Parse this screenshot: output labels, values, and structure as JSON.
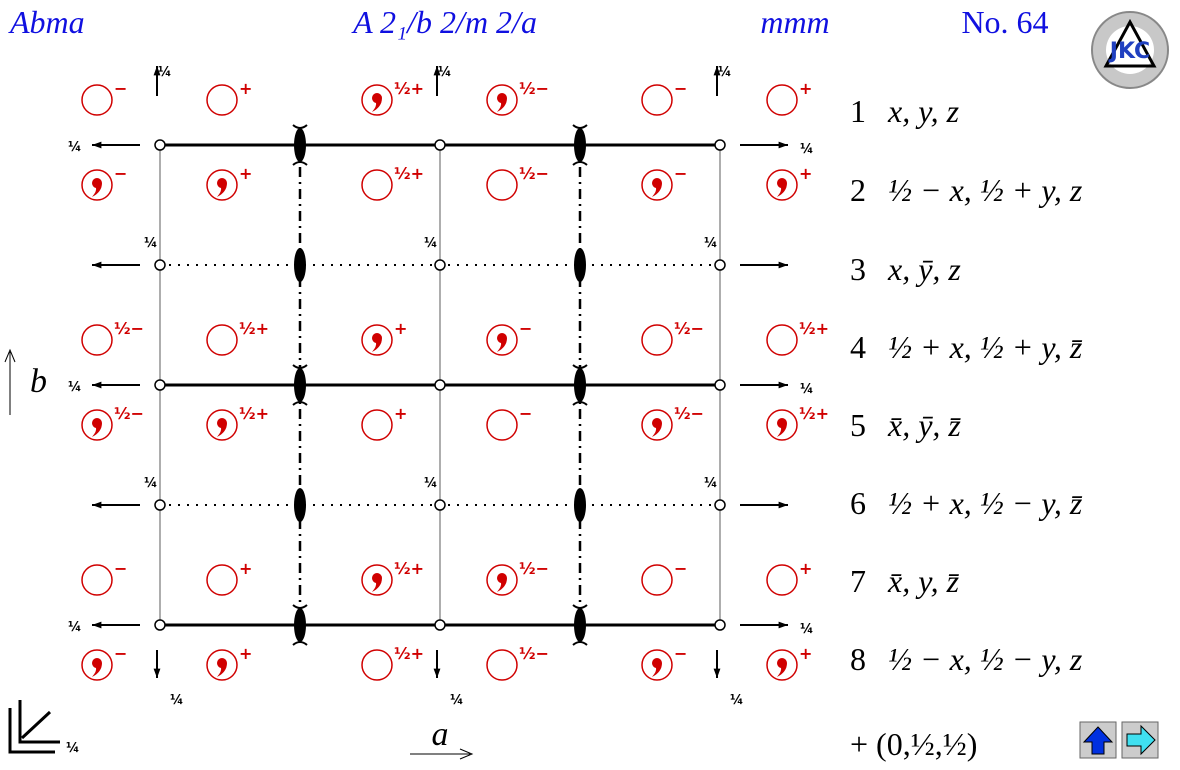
{
  "header": {
    "symbol": "Abma",
    "full_symbol": "A 2₁/b 2/m 2/a",
    "point_group": "mmm",
    "number": "No. 64"
  },
  "logo": "JKC",
  "axes": {
    "a": "a",
    "b": "b"
  },
  "quarter": "¼",
  "symbols": [
    [
      {
        "sign": "−",
        "comma": false
      },
      {
        "sign": "+",
        "comma": false
      },
      {
        "sign": "½+",
        "comma": true
      },
      {
        "sign": "½−",
        "comma": true
      },
      {
        "sign": "−",
        "comma": false
      },
      {
        "sign": "+",
        "comma": false
      }
    ],
    [
      {
        "sign": "−",
        "comma": true
      },
      {
        "sign": "+",
        "comma": true
      },
      {
        "sign": "½+",
        "comma": false
      },
      {
        "sign": "½−",
        "comma": false
      },
      {
        "sign": "−",
        "comma": true
      },
      {
        "sign": "+",
        "comma": true
      }
    ],
    [
      {
        "sign": "½−",
        "comma": false
      },
      {
        "sign": "½+",
        "comma": false
      },
      {
        "sign": "+",
        "comma": true
      },
      {
        "sign": "−",
        "comma": true
      },
      {
        "sign": "½−",
        "comma": false
      },
      {
        "sign": "½+",
        "comma": false
      }
    ],
    [
      {
        "sign": "½−",
        "comma": true
      },
      {
        "sign": "½+",
        "comma": true
      },
      {
        "sign": "+",
        "comma": false
      },
      {
        "sign": "−",
        "comma": false
      },
      {
        "sign": "½−",
        "comma": true
      },
      {
        "sign": "½+",
        "comma": true
      }
    ],
    [
      {
        "sign": "−",
        "comma": false
      },
      {
        "sign": "+",
        "comma": false
      },
      {
        "sign": "½+",
        "comma": true
      },
      {
        "sign": "½−",
        "comma": true
      },
      {
        "sign": "−",
        "comma": false
      },
      {
        "sign": "+",
        "comma": false
      }
    ],
    [
      {
        "sign": "−",
        "comma": true
      },
      {
        "sign": "+",
        "comma": true
      },
      {
        "sign": "½+",
        "comma": false
      },
      {
        "sign": "½−",
        "comma": false
      },
      {
        "sign": "−",
        "comma": true
      },
      {
        "sign": "+",
        "comma": true
      }
    ]
  ],
  "positions": [
    {
      "n": "1",
      "coords": "x, y, z"
    },
    {
      "n": "2",
      "coords": "½ − x, ½ + y, z"
    },
    {
      "n": "3",
      "coords": "x, ȳ, z"
    },
    {
      "n": "4",
      "coords": "½ + x, ½ + y, z̄"
    },
    {
      "n": "5",
      "coords": "x̄, ȳ, z̄"
    },
    {
      "n": "6",
      "coords": "½ + x, ½ − y, z̄"
    },
    {
      "n": "7",
      "coords": "x̄, y, z̄"
    },
    {
      "n": "8",
      "coords": "½ − x, ½ − y, z"
    }
  ],
  "centering": "+ (0,½,½)"
}
